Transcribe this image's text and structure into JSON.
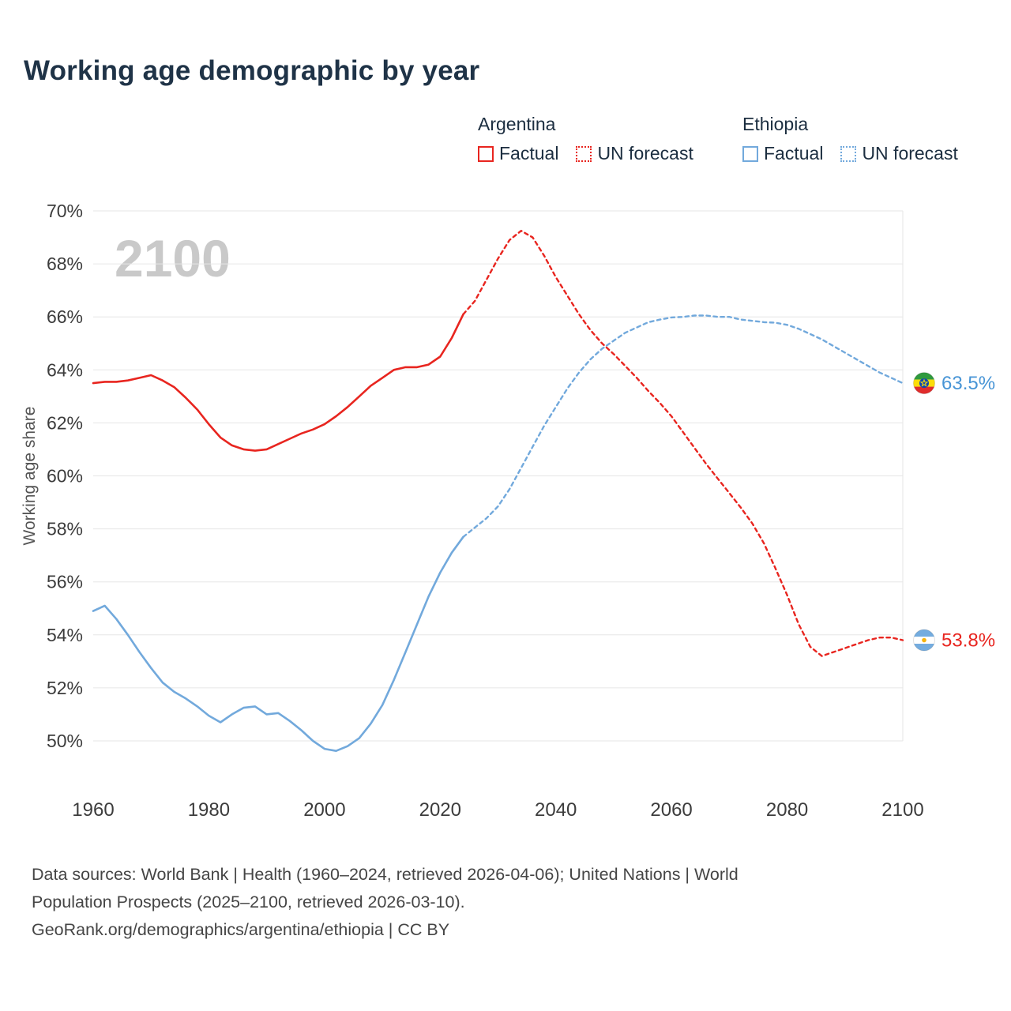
{
  "title": "Working age demographic by year",
  "legend": {
    "groups": [
      {
        "name": "Argentina",
        "factual": "Factual",
        "forecast": "UN forecast"
      },
      {
        "name": "Ethiopia",
        "factual": "Factual",
        "forecast": "UN forecast"
      }
    ]
  },
  "footer": {
    "line1": "Data sources: World Bank | Health (1960–2024, retrieved 2026-04-06); United Nations | World",
    "line2": "Population Prospects (2025–2100, retrieved 2026-03-10).",
    "line3": "GeoRank.org/demographics/argentina/ethiopia | CC BY"
  },
  "colors": {
    "argentina": "#e8251f",
    "ethiopia": "#72a9dc"
  },
  "chart_data": {
    "type": "line",
    "title": "Working age demographic by year",
    "ylabel": "Working age share",
    "watermark": "2100",
    "xlim": [
      1960,
      2100
    ],
    "ylim": [
      50,
      70
    ],
    "yticks": [
      50,
      52,
      54,
      56,
      58,
      60,
      62,
      64,
      66,
      68,
      70
    ],
    "yticklabels": [
      "50%",
      "52%",
      "54%",
      "56%",
      "58%",
      "60%",
      "62%",
      "64%",
      "66%",
      "68%",
      "70%"
    ],
    "xticks": [
      1960,
      1980,
      2000,
      2020,
      2040,
      2060,
      2080,
      2100
    ],
    "xticklabels": [
      "1960",
      "1980",
      "2000",
      "2020",
      "2040",
      "2060",
      "2080",
      "2100"
    ],
    "forecast_start": 2024,
    "grid": true,
    "legend_position": "top-right",
    "series": [
      {
        "name": "Argentina",
        "color": "#e8251f",
        "label_color": "#e8251f",
        "flag": "argentina",
        "end_label": "53.8%",
        "factual": [
          [
            1960,
            63.5
          ],
          [
            1962,
            63.55
          ],
          [
            1964,
            63.55
          ],
          [
            1966,
            63.6
          ],
          [
            1968,
            63.7
          ],
          [
            1970,
            63.8
          ],
          [
            1972,
            63.6
          ],
          [
            1974,
            63.35
          ],
          [
            1976,
            62.95
          ],
          [
            1978,
            62.5
          ],
          [
            1980,
            61.95
          ],
          [
            1982,
            61.45
          ],
          [
            1984,
            61.15
          ],
          [
            1986,
            61.0
          ],
          [
            1988,
            60.95
          ],
          [
            1990,
            61.0
          ],
          [
            1992,
            61.2
          ],
          [
            1994,
            61.4
          ],
          [
            1996,
            61.6
          ],
          [
            1998,
            61.75
          ],
          [
            2000,
            61.95
          ],
          [
            2002,
            62.25
          ],
          [
            2004,
            62.6
          ],
          [
            2006,
            63.0
          ],
          [
            2008,
            63.4
          ],
          [
            2010,
            63.7
          ],
          [
            2012,
            64.0
          ],
          [
            2014,
            64.1
          ],
          [
            2016,
            64.1
          ],
          [
            2018,
            64.2
          ],
          [
            2020,
            64.5
          ],
          [
            2022,
            65.2
          ],
          [
            2024,
            66.1
          ]
        ],
        "forecast": [
          [
            2024,
            66.1
          ],
          [
            2026,
            66.6
          ],
          [
            2028,
            67.4
          ],
          [
            2030,
            68.2
          ],
          [
            2032,
            68.9
          ],
          [
            2034,
            69.25
          ],
          [
            2036,
            69.0
          ],
          [
            2038,
            68.3
          ],
          [
            2040,
            67.5
          ],
          [
            2042,
            66.8
          ],
          [
            2044,
            66.1
          ],
          [
            2046,
            65.5
          ],
          [
            2048,
            65.0
          ],
          [
            2050,
            64.6
          ],
          [
            2052,
            64.15
          ],
          [
            2054,
            63.7
          ],
          [
            2056,
            63.2
          ],
          [
            2058,
            62.75
          ],
          [
            2060,
            62.25
          ],
          [
            2062,
            61.65
          ],
          [
            2064,
            61.05
          ],
          [
            2066,
            60.45
          ],
          [
            2068,
            59.9
          ],
          [
            2070,
            59.35
          ],
          [
            2072,
            58.8
          ],
          [
            2074,
            58.2
          ],
          [
            2076,
            57.45
          ],
          [
            2078,
            56.5
          ],
          [
            2080,
            55.5
          ],
          [
            2082,
            54.4
          ],
          [
            2084,
            53.55
          ],
          [
            2086,
            53.2
          ],
          [
            2088,
            53.35
          ],
          [
            2090,
            53.5
          ],
          [
            2092,
            53.65
          ],
          [
            2094,
            53.8
          ],
          [
            2096,
            53.9
          ],
          [
            2098,
            53.9
          ],
          [
            2100,
            53.8
          ]
        ]
      },
      {
        "name": "Ethiopia",
        "color": "#72a9dc",
        "label_color": "#4895d6",
        "flag": "ethiopia",
        "end_label": "63.5%",
        "factual": [
          [
            1960,
            54.9
          ],
          [
            1962,
            55.1
          ],
          [
            1964,
            54.6
          ],
          [
            1966,
            54.0
          ],
          [
            1968,
            53.35
          ],
          [
            1970,
            52.75
          ],
          [
            1972,
            52.2
          ],
          [
            1974,
            51.85
          ],
          [
            1976,
            51.6
          ],
          [
            1978,
            51.3
          ],
          [
            1980,
            50.95
          ],
          [
            1982,
            50.7
          ],
          [
            1984,
            51.0
          ],
          [
            1986,
            51.25
          ],
          [
            1988,
            51.3
          ],
          [
            1990,
            51.0
          ],
          [
            1992,
            51.05
          ],
          [
            1994,
            50.75
          ],
          [
            1996,
            50.4
          ],
          [
            1998,
            50.0
          ],
          [
            2000,
            49.7
          ],
          [
            2002,
            49.62
          ],
          [
            2004,
            49.8
          ],
          [
            2006,
            50.1
          ],
          [
            2008,
            50.65
          ],
          [
            2010,
            51.35
          ],
          [
            2012,
            52.3
          ],
          [
            2014,
            53.35
          ],
          [
            2016,
            54.4
          ],
          [
            2018,
            55.45
          ],
          [
            2020,
            56.35
          ],
          [
            2022,
            57.1
          ],
          [
            2024,
            57.7
          ]
        ],
        "forecast": [
          [
            2024,
            57.7
          ],
          [
            2026,
            58.05
          ],
          [
            2028,
            58.4
          ],
          [
            2030,
            58.85
          ],
          [
            2032,
            59.5
          ],
          [
            2034,
            60.3
          ],
          [
            2036,
            61.1
          ],
          [
            2038,
            61.9
          ],
          [
            2040,
            62.6
          ],
          [
            2042,
            63.3
          ],
          [
            2044,
            63.9
          ],
          [
            2046,
            64.4
          ],
          [
            2048,
            64.8
          ],
          [
            2050,
            65.1
          ],
          [
            2052,
            65.4
          ],
          [
            2054,
            65.6
          ],
          [
            2056,
            65.8
          ],
          [
            2058,
            65.9
          ],
          [
            2060,
            65.98
          ],
          [
            2062,
            66.0
          ],
          [
            2064,
            66.05
          ],
          [
            2066,
            66.05
          ],
          [
            2068,
            66.0
          ],
          [
            2070,
            66.0
          ],
          [
            2072,
            65.9
          ],
          [
            2074,
            65.85
          ],
          [
            2076,
            65.8
          ],
          [
            2078,
            65.78
          ],
          [
            2080,
            65.7
          ],
          [
            2082,
            65.55
          ],
          [
            2084,
            65.35
          ],
          [
            2086,
            65.15
          ],
          [
            2088,
            64.9
          ],
          [
            2090,
            64.65
          ],
          [
            2092,
            64.4
          ],
          [
            2094,
            64.15
          ],
          [
            2096,
            63.9
          ],
          [
            2098,
            63.7
          ],
          [
            2100,
            63.5
          ]
        ]
      }
    ]
  }
}
